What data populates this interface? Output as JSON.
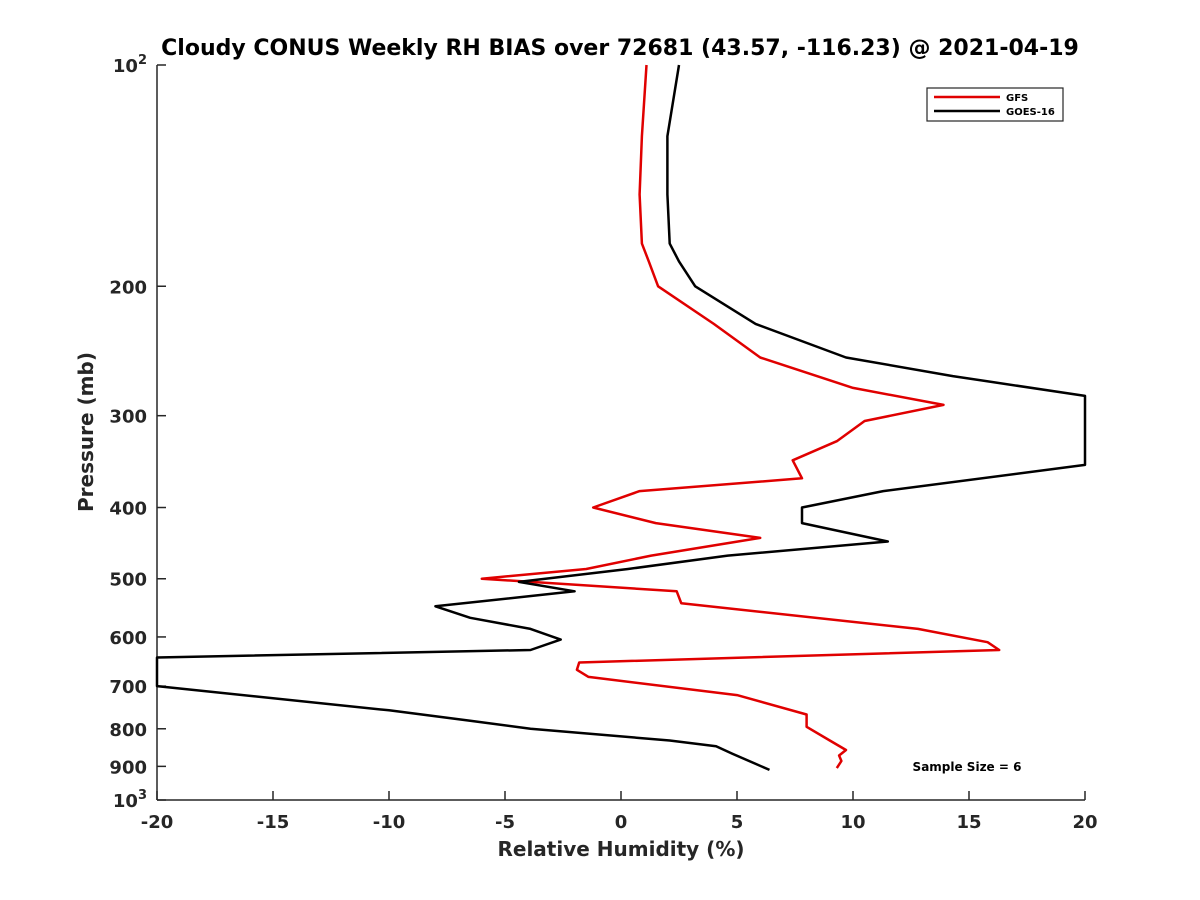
{
  "chart_data": {
    "type": "line",
    "title": "Cloudy CONUS Weekly RH BIAS over 72681 (43.57, -116.23) @ 2021-04-19",
    "xlabel": "Relative Humidity (%)",
    "ylabel": "Pressure (mb)",
    "xlim": [
      -20,
      20
    ],
    "ylim": [
      100,
      1000
    ],
    "yscale": "log",
    "y_reversed": true,
    "grid": false,
    "legend_position": "top-right",
    "x_ticks": [
      {
        "value": -20,
        "label": "-20"
      },
      {
        "value": -15,
        "label": "-15"
      },
      {
        "value": -10,
        "label": "-10"
      },
      {
        "value": -5,
        "label": "-5"
      },
      {
        "value": 0,
        "label": "0"
      },
      {
        "value": 5,
        "label": "5"
      },
      {
        "value": 10,
        "label": "10"
      },
      {
        "value": 15,
        "label": "15"
      },
      {
        "value": 20,
        "label": "20"
      }
    ],
    "y_ticks": [
      {
        "value": 100,
        "base": "10",
        "exp": "2"
      },
      {
        "value": 200,
        "label": "200"
      },
      {
        "value": 300,
        "label": "300"
      },
      {
        "value": 400,
        "label": "400"
      },
      {
        "value": 500,
        "label": "500"
      },
      {
        "value": 600,
        "label": "600"
      },
      {
        "value": 700,
        "label": "700"
      },
      {
        "value": 800,
        "label": "800"
      },
      {
        "value": 900,
        "label": "900"
      },
      {
        "value": 1000,
        "base": "10",
        "exp": "3"
      }
    ],
    "annotation": "Sample Size = 6",
    "series": [
      {
        "name": "GFS",
        "color": "#e00000",
        "points": [
          [
            1.1,
            100
          ],
          [
            0.9,
            125
          ],
          [
            0.8,
            150
          ],
          [
            0.9,
            175
          ],
          [
            1.2,
            185
          ],
          [
            1.6,
            200
          ],
          [
            4.0,
            225
          ],
          [
            6.0,
            250
          ],
          [
            10.0,
            275
          ],
          [
            13.9,
            290
          ],
          [
            10.5,
            305
          ],
          [
            9.3,
            325
          ],
          [
            7.4,
            345
          ],
          [
            7.8,
            365
          ],
          [
            0.8,
            380
          ],
          [
            -1.2,
            400
          ],
          [
            1.5,
            420
          ],
          [
            6.0,
            440
          ],
          [
            1.3,
            465
          ],
          [
            -1.5,
            485
          ],
          [
            -6.0,
            500
          ],
          [
            2.4,
            520
          ],
          [
            2.6,
            540
          ],
          [
            12.8,
            585
          ],
          [
            15.8,
            610
          ],
          [
            16.3,
            625
          ],
          [
            -1.8,
            650
          ],
          [
            -1.9,
            665
          ],
          [
            -1.4,
            680
          ],
          [
            5.0,
            720
          ],
          [
            8.0,
            765
          ],
          [
            8.0,
            795
          ],
          [
            9.0,
            830
          ],
          [
            9.7,
            855
          ],
          [
            9.4,
            870
          ],
          [
            9.5,
            885
          ],
          [
            9.3,
            905
          ]
        ]
      },
      {
        "name": "GOES-16",
        "color": "#000000",
        "points": [
          [
            2.5,
            100
          ],
          [
            2.0,
            125
          ],
          [
            2.0,
            150
          ],
          [
            2.1,
            175
          ],
          [
            2.5,
            185
          ],
          [
            3.2,
            200
          ],
          [
            5.8,
            225
          ],
          [
            9.7,
            250
          ],
          [
            14.3,
            265
          ],
          [
            20.0,
            282
          ],
          [
            20.0,
            350
          ],
          [
            11.3,
            380
          ],
          [
            7.8,
            400
          ],
          [
            7.8,
            420
          ],
          [
            11.5,
            445
          ],
          [
            4.6,
            465
          ],
          [
            0.3,
            485
          ],
          [
            -4.4,
            505
          ],
          [
            -2.0,
            520
          ],
          [
            -8.0,
            545
          ],
          [
            -6.5,
            565
          ],
          [
            -3.9,
            585
          ],
          [
            -2.6,
            605
          ],
          [
            -3.9,
            625
          ],
          [
            -20.0,
            640
          ],
          [
            -20.0,
            700
          ],
          [
            -10.0,
            755
          ],
          [
            -6.5,
            780
          ],
          [
            -3.9,
            800
          ],
          [
            2.1,
            830
          ],
          [
            4.1,
            845
          ],
          [
            4.8,
            865
          ],
          [
            6.4,
            910
          ]
        ]
      }
    ]
  }
}
